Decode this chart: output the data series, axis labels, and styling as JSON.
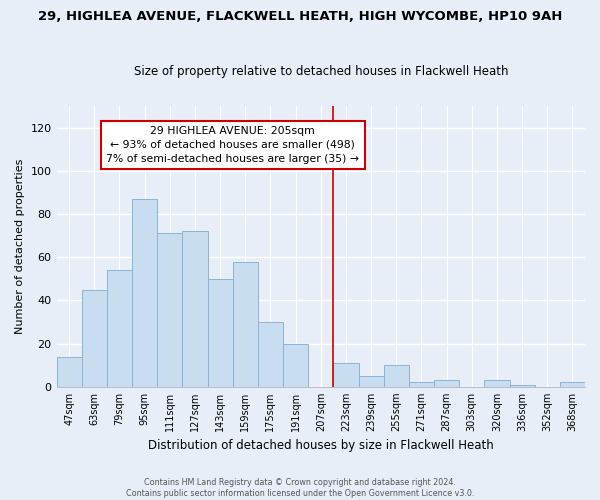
{
  "title": "29, HIGHLEA AVENUE, FLACKWELL HEATH, HIGH WYCOMBE, HP10 9AH",
  "subtitle": "Size of property relative to detached houses in Flackwell Heath",
  "xlabel": "Distribution of detached houses by size in Flackwell Heath",
  "ylabel": "Number of detached properties",
  "footer_line1": "Contains HM Land Registry data © Crown copyright and database right 2024.",
  "footer_line2": "Contains public sector information licensed under the Open Government Licence v3.0.",
  "bin_labels": [
    "47sqm",
    "63sqm",
    "79sqm",
    "95sqm",
    "111sqm",
    "127sqm",
    "143sqm",
    "159sqm",
    "175sqm",
    "191sqm",
    "207sqm",
    "223sqm",
    "239sqm",
    "255sqm",
    "271sqm",
    "287sqm",
    "303sqm",
    "320sqm",
    "336sqm",
    "352sqm",
    "368sqm"
  ],
  "bar_heights": [
    14,
    45,
    54,
    87,
    71,
    72,
    50,
    58,
    30,
    20,
    0,
    11,
    5,
    10,
    2,
    3,
    0,
    3,
    1,
    0,
    2
  ],
  "bar_color": "#c8ddf0",
  "bar_edge_color": "#8ab4d4",
  "vline_x_idx": 10,
  "vline_color": "#cc0000",
  "annotation_title": "29 HIGHLEA AVENUE: 205sqm",
  "annotation_line1": "← 93% of detached houses are smaller (498)",
  "annotation_line2": "7% of semi-detached houses are larger (35) →",
  "annotation_box_color": "#ffffff",
  "annotation_box_edge": "#cc0000",
  "ylim": [
    0,
    130
  ],
  "yticks": [
    0,
    20,
    40,
    60,
    80,
    100,
    120
  ],
  "background_color": "#e8eef8",
  "plot_background": "#e8eef8",
  "title_fontsize": 9.5,
  "subtitle_fontsize": 8.5
}
